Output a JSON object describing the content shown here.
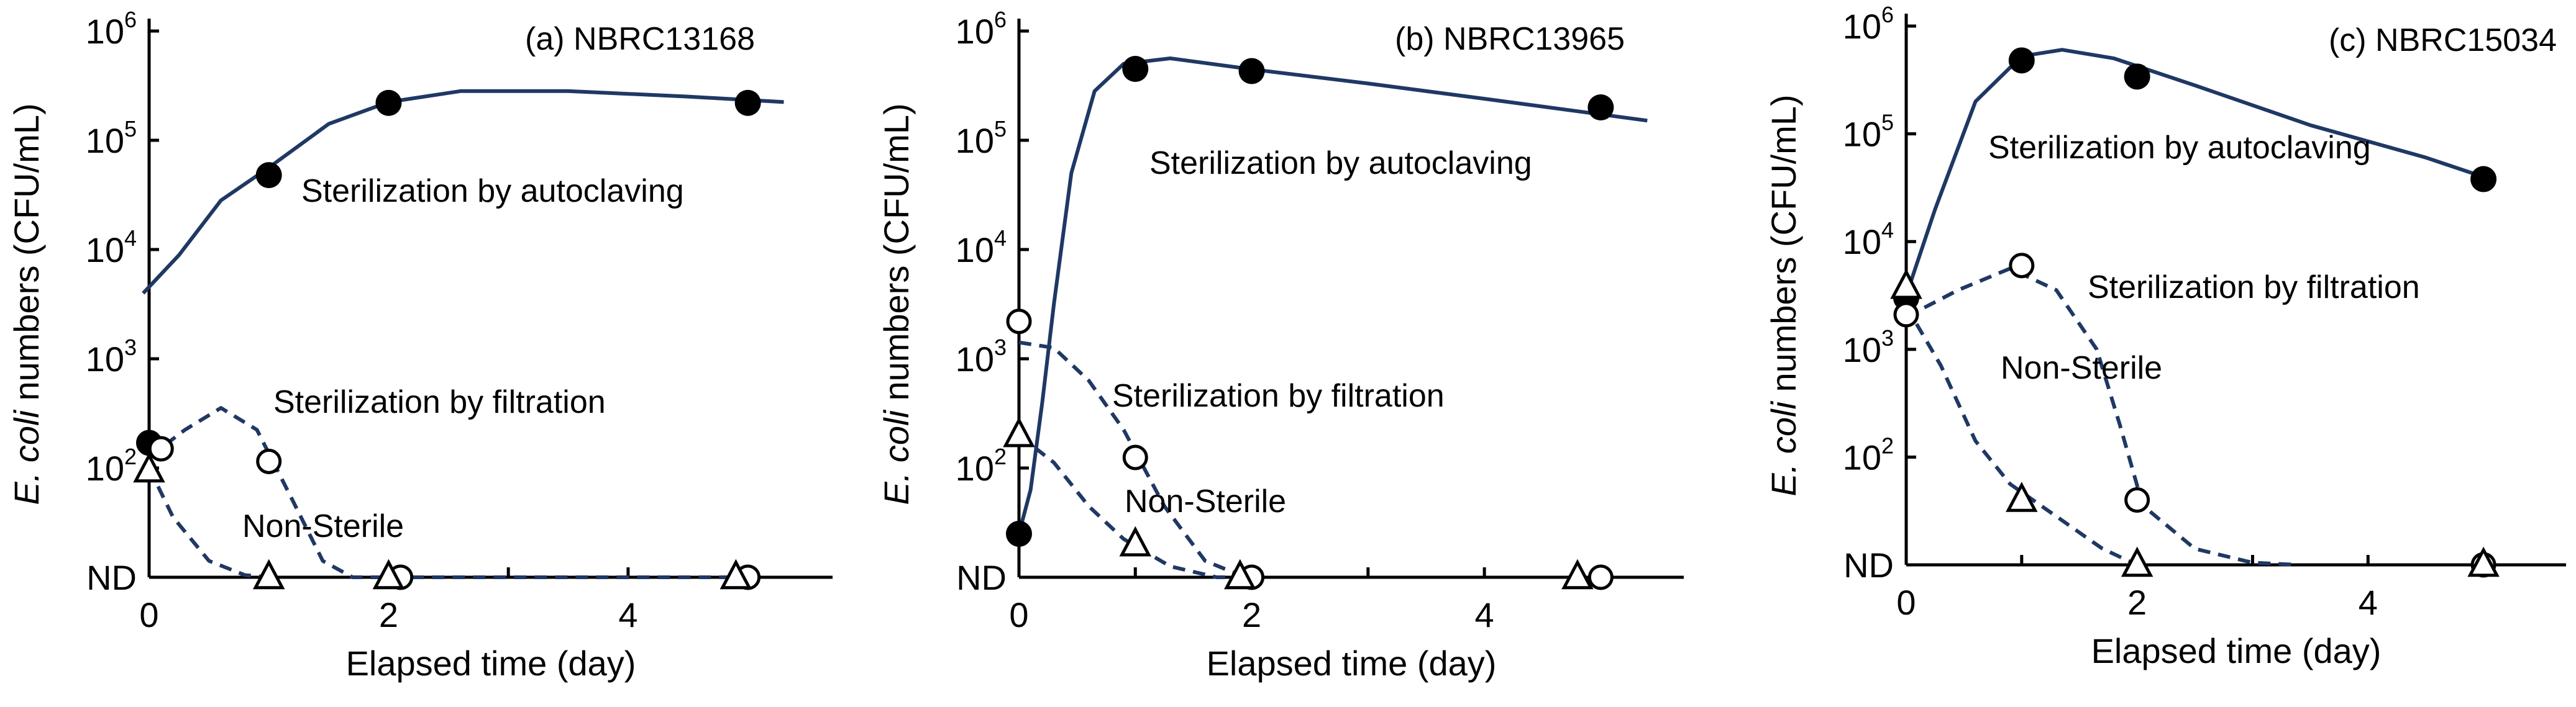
{
  "chart_data": [
    {
      "type": "scatter",
      "title": "(a) NBRC13168",
      "xlabel": "Elapsed time (day)",
      "ylabel": {
        "italic": "E. coli",
        "rest": " numbers (CFU/mL)"
      },
      "yscale": "log",
      "xlim": [
        0,
        5.5
      ],
      "xticks": [
        "0",
        "2",
        "4"
      ],
      "yticks": [
        "ND",
        "10",
        "10",
        "10",
        "10",
        "10"
      ],
      "ytick_exponents": [
        "",
        "2",
        "3",
        "4",
        "5",
        "6"
      ],
      "grid": false,
      "legend": "none",
      "series": [
        {
          "marker": "filled-circle",
          "line": "solid",
          "points": [
            [
              0,
              170
            ],
            [
              1,
              48000
            ],
            [
              2,
              220000
            ],
            [
              5,
              220000
            ]
          ]
        },
        {
          "marker": "open-circle",
          "line": "dashed",
          "points": [
            [
              0.1,
              150
            ],
            [
              1,
              115
            ],
            [
              2.1,
              "ND"
            ],
            [
              5,
              "ND"
            ]
          ]
        },
        {
          "marker": "open-triangle",
          "line": "dashed",
          "points": [
            [
              0,
              95
            ],
            [
              1,
              "ND"
            ],
            [
              2,
              "ND"
            ],
            [
              4.9,
              "ND"
            ]
          ]
        }
      ],
      "annotations": [
        "Sterilization by autoclaving",
        "Sterilization by filtration",
        "Non-Sterile"
      ]
    },
    {
      "type": "scatter",
      "title": "(b) NBRC13965",
      "xlabel": "Elapsed time (day)",
      "ylabel": {
        "italic": "E. coli",
        "rest": " numbers (CFU/mL)"
      },
      "yscale": "log",
      "xlim": [
        0,
        5.5
      ],
      "xticks": [
        "0",
        "2",
        "4"
      ],
      "yticks": [
        "ND",
        "10",
        "10",
        "10",
        "10",
        "10"
      ],
      "ytick_exponents": [
        "",
        "2",
        "3",
        "4",
        "5",
        "6"
      ],
      "grid": false,
      "legend": "none",
      "series": [
        {
          "marker": "filled-circle",
          "line": "solid",
          "points": [
            [
              0,
              25
            ],
            [
              1,
              450000
            ],
            [
              2,
              430000
            ],
            [
              5,
              200000
            ]
          ]
        },
        {
          "marker": "open-circle",
          "line": "dashed",
          "points": [
            [
              0,
              2200
            ],
            [
              1,
              125
            ],
            [
              2,
              "ND"
            ],
            [
              5,
              "ND"
            ]
          ]
        },
        {
          "marker": "open-triangle",
          "line": "dashed",
          "points": [
            [
              0,
              200
            ],
            [
              1,
              20
            ],
            [
              1.9,
              "ND"
            ],
            [
              4.8,
              "ND"
            ]
          ]
        }
      ],
      "annotations": [
        "Sterilization by autoclaving",
        "Sterilization by filtration",
        "Non-Sterile"
      ]
    },
    {
      "type": "scatter",
      "title": "(c) NBRC15034",
      "xlabel": "Elapsed time (day)",
      "ylabel": {
        "italic": "E. coli",
        "rest": " numbers (CFU/mL)"
      },
      "yscale": "log",
      "xlim": [
        0,
        5.5
      ],
      "xticks": [
        "0",
        "2",
        "4"
      ],
      "yticks": [
        "ND",
        "10",
        "10",
        "10",
        "10",
        "10"
      ],
      "ytick_exponents": [
        "",
        "2",
        "3",
        "4",
        "5",
        "6"
      ],
      "grid": false,
      "legend": "none",
      "series": [
        {
          "marker": "filled-circle",
          "line": "solid",
          "points": [
            [
              0,
              3000
            ],
            [
              1,
              480000
            ],
            [
              2,
              340000
            ],
            [
              5,
              38000
            ]
          ]
        },
        {
          "marker": "open-circle",
          "line": "dashed",
          "points": [
            [
              0,
              2100
            ],
            [
              1,
              6000
            ],
            [
              2,
              40
            ],
            [
              5,
              "ND"
            ]
          ]
        },
        {
          "marker": "open-triangle",
          "line": "dashed",
          "points": [
            [
              0,
              3800
            ],
            [
              1,
              40
            ],
            [
              2,
              "ND"
            ],
            [
              5,
              "ND"
            ]
          ]
        }
      ],
      "annotations": [
        "Sterilization by autoclaving",
        "Sterilization by filtration",
        "Non-Sterile"
      ]
    }
  ],
  "colors": {
    "curve": "#1f3864",
    "marker": "#000000",
    "axis": "#000000"
  }
}
